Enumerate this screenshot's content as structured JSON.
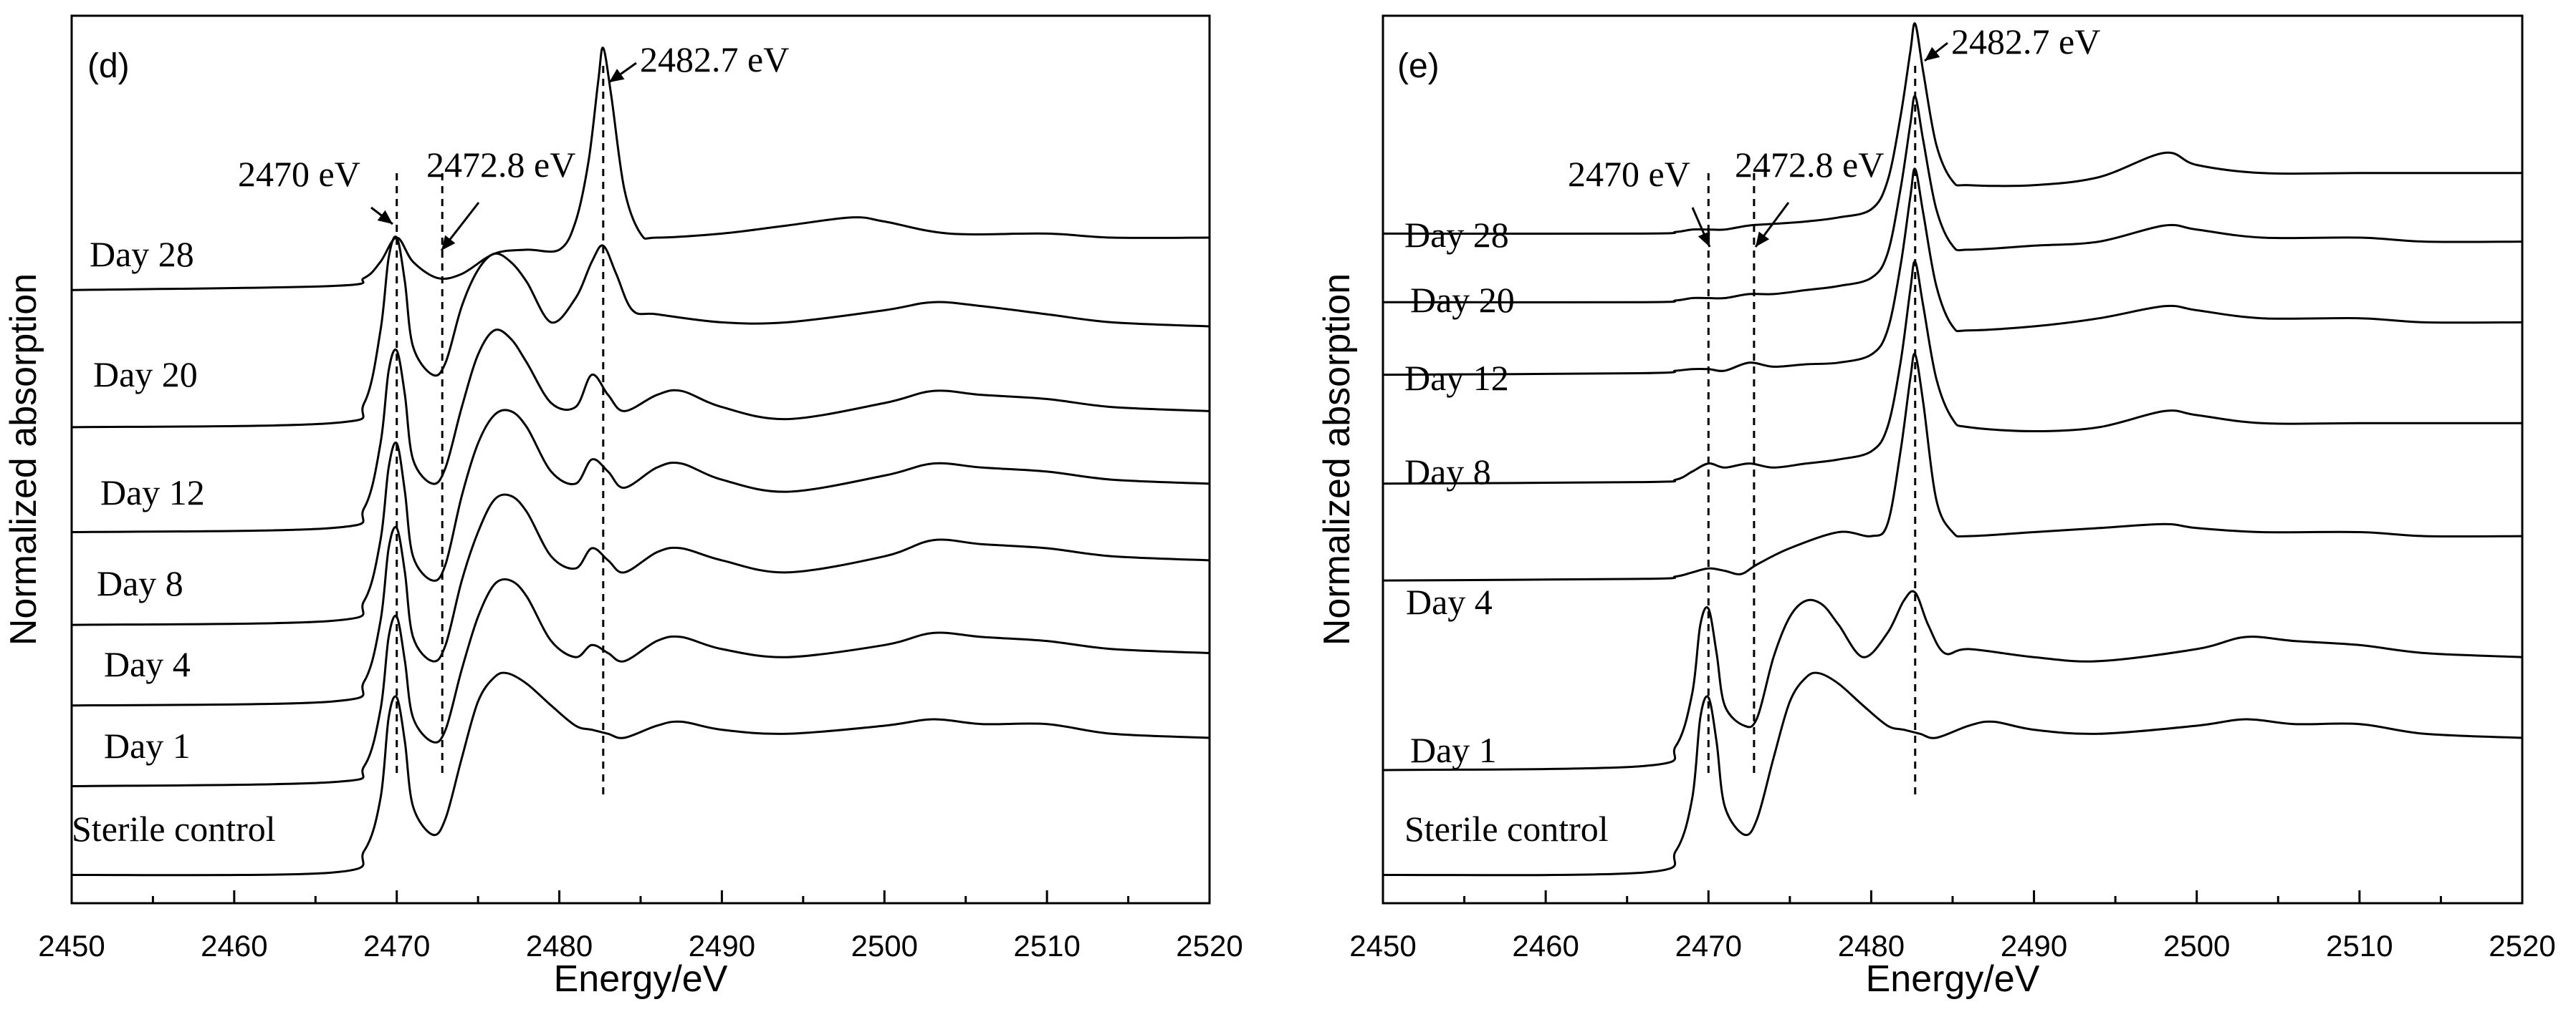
{
  "chart_data": [
    {
      "type": "line",
      "panel_label": "(d)",
      "xlabel": "Energy/eV",
      "ylabel": "Normalized absorption",
      "xlim": [
        2450,
        2520
      ],
      "ylim": [
        0,
        11
      ],
      "x_ticks": [
        "2450",
        "2460",
        "2470",
        "2480",
        "2490",
        "2500",
        "2510",
        "2520"
      ],
      "y_ticks_shown": false,
      "grid": false,
      "legend": "none (series labelled inline at left)",
      "reference_lines": [
        {
          "x": 2470,
          "label": "2470 eV"
        },
        {
          "x": 2472.8,
          "label": "2472.8 eV"
        },
        {
          "x": 2482.7,
          "label": "2482.7 eV"
        }
      ],
      "series": [
        {
          "name": "Sterile control",
          "x": [
            2450,
            2466,
            2468,
            2469,
            2469.5,
            2470,
            2470.5,
            2471,
            2472.2,
            2473,
            2474,
            2475,
            2476,
            2476.8,
            2478,
            2479.5,
            2481,
            2482,
            2483,
            2484,
            2486,
            2487.5,
            2490,
            2494,
            2500,
            2503,
            2506,
            2510,
            2514,
            2520
          ],
          "y": [
            0.35,
            0.38,
            0.65,
            1.3,
            2.3,
            2.55,
            2.0,
            1.2,
            0.85,
            1.05,
            1.8,
            2.5,
            2.8,
            2.85,
            2.72,
            2.45,
            2.2,
            2.15,
            2.1,
            2.05,
            2.2,
            2.25,
            2.15,
            2.1,
            2.2,
            2.28,
            2.22,
            2.22,
            2.1,
            2.05
          ]
        },
        {
          "name": "Day 1",
          "x": [
            2450,
            2466,
            2468,
            2469,
            2469.5,
            2470,
            2470.5,
            2471,
            2472.2,
            2473,
            2474,
            2475,
            2476,
            2477,
            2478,
            2479.5,
            2481,
            2482,
            2483,
            2484,
            2486,
            2487.5,
            2490,
            2494,
            2500,
            2503,
            2506,
            2510,
            2514,
            2520
          ],
          "y": [
            1.45,
            1.5,
            1.7,
            2.4,
            3.3,
            3.55,
            3.0,
            2.3,
            2.0,
            2.15,
            2.9,
            3.55,
            3.95,
            4.0,
            3.8,
            3.25,
            3.05,
            3.2,
            3.1,
            3.0,
            3.25,
            3.3,
            3.15,
            3.05,
            3.2,
            3.35,
            3.3,
            3.25,
            3.15,
            3.1
          ]
        },
        {
          "name": "Day 4",
          "x": [
            2450,
            2466,
            2468,
            2469,
            2469.5,
            2470,
            2470.5,
            2471,
            2472.2,
            2473,
            2474,
            2475,
            2476,
            2477,
            2478,
            2479.5,
            2481,
            2482,
            2483,
            2484,
            2486,
            2487.5,
            2490,
            2494,
            2500,
            2503,
            2506,
            2510,
            2514,
            2520
          ],
          "y": [
            2.45,
            2.5,
            2.75,
            3.5,
            4.4,
            4.65,
            4.1,
            3.3,
            3.0,
            3.2,
            4.0,
            4.6,
            5.0,
            5.05,
            4.85,
            4.3,
            4.15,
            4.4,
            4.25,
            4.1,
            4.35,
            4.4,
            4.25,
            4.1,
            4.3,
            4.5,
            4.45,
            4.4,
            4.3,
            4.25
          ]
        },
        {
          "name": "Day 8",
          "x": [
            2450,
            2466,
            2468,
            2469,
            2469.5,
            2470,
            2470.5,
            2471,
            2472.2,
            2473,
            2474,
            2475,
            2476,
            2477,
            2478,
            2479.5,
            2481,
            2482,
            2483,
            2484,
            2486,
            2487.5,
            2490,
            2494,
            2500,
            2503,
            2506,
            2510,
            2514,
            2520
          ],
          "y": [
            3.45,
            3.5,
            3.75,
            4.5,
            5.4,
            5.7,
            5.1,
            4.3,
            4.0,
            4.2,
            5.05,
            5.7,
            6.05,
            6.1,
            5.9,
            5.35,
            5.2,
            5.5,
            5.35,
            5.15,
            5.4,
            5.45,
            5.25,
            5.1,
            5.3,
            5.45,
            5.4,
            5.35,
            5.25,
            5.2
          ]
        },
        {
          "name": "Day 12",
          "x": [
            2450,
            2466,
            2468,
            2469,
            2469.5,
            2470,
            2470.5,
            2471,
            2472.2,
            2473,
            2474,
            2475,
            2476,
            2477,
            2478,
            2479.5,
            2481,
            2482,
            2483,
            2484,
            2486,
            2487.5,
            2490,
            2494,
            2500,
            2503,
            2506,
            2510,
            2514,
            2520
          ],
          "y": [
            4.6,
            4.65,
            4.9,
            5.7,
            6.6,
            6.85,
            6.3,
            5.5,
            5.2,
            5.4,
            6.15,
            6.8,
            7.1,
            7.0,
            6.7,
            6.2,
            6.15,
            6.55,
            6.3,
            6.1,
            6.3,
            6.35,
            6.15,
            6.0,
            6.2,
            6.35,
            6.3,
            6.25,
            6.15,
            6.1
          ]
        },
        {
          "name": "Day 20",
          "x": [
            2450,
            2466,
            2468,
            2469,
            2469.5,
            2470,
            2470.5,
            2471,
            2472.2,
            2473,
            2474,
            2475,
            2476,
            2477,
            2478,
            2479.5,
            2481,
            2482,
            2482.7,
            2483.5,
            2484.5,
            2486,
            2490,
            2494,
            2500,
            2503,
            2506,
            2510,
            2514,
            2520
          ],
          "y": [
            5.9,
            5.95,
            6.2,
            7.1,
            8.0,
            8.25,
            7.7,
            6.9,
            6.55,
            6.7,
            7.4,
            7.85,
            8.05,
            7.95,
            7.7,
            7.2,
            7.5,
            7.95,
            8.15,
            7.8,
            7.35,
            7.3,
            7.2,
            7.2,
            7.35,
            7.45,
            7.4,
            7.3,
            7.2,
            7.15
          ]
        },
        {
          "name": "Day 28",
          "x": [
            2450,
            2466,
            2468,
            2469,
            2470,
            2471,
            2472.5,
            2474,
            2476,
            2478,
            2480,
            2481,
            2481.8,
            2482.4,
            2482.7,
            2483.2,
            2484,
            2485,
            2486,
            2490,
            2494,
            2498,
            2500,
            2504,
            2510,
            2514,
            2520
          ],
          "y": [
            7.6,
            7.65,
            7.75,
            7.95,
            8.25,
            7.95,
            7.75,
            7.8,
            8.05,
            8.1,
            8.1,
            8.45,
            9.2,
            10.2,
            10.6,
            10.0,
            8.85,
            8.3,
            8.25,
            8.3,
            8.4,
            8.5,
            8.45,
            8.3,
            8.3,
            8.25,
            8.25
          ]
        }
      ]
    },
    {
      "type": "line",
      "panel_label": "(e)",
      "xlabel": "Energy/eV",
      "ylabel": "Normalized absorption",
      "xlim": [
        2450,
        2520
      ],
      "ylim": [
        0,
        11
      ],
      "x_ticks": [
        "2450",
        "2460",
        "2470",
        "2480",
        "2490",
        "2500",
        "2510",
        "2520"
      ],
      "y_ticks_shown": false,
      "grid": false,
      "legend": "none (series labelled inline at left)",
      "reference_lines": [
        {
          "x": 2470,
          "label": "2470 eV"
        },
        {
          "x": 2472.8,
          "label": "2472.8 eV"
        },
        {
          "x": 2482.7,
          "label": "2482.7 eV"
        }
      ],
      "series": [
        {
          "name": "Sterile control",
          "x": [
            2450,
            2466,
            2468,
            2469,
            2469.5,
            2470,
            2470.5,
            2471,
            2472.2,
            2473,
            2474,
            2475,
            2476,
            2476.8,
            2478,
            2479.5,
            2481,
            2482,
            2483,
            2484,
            2486,
            2487.5,
            2490,
            2494,
            2500,
            2503,
            2506,
            2510,
            2514,
            2520
          ],
          "y": [
            0.35,
            0.38,
            0.65,
            1.3,
            2.3,
            2.55,
            2.0,
            1.2,
            0.85,
            1.05,
            1.8,
            2.5,
            2.8,
            2.85,
            2.72,
            2.45,
            2.2,
            2.15,
            2.1,
            2.05,
            2.2,
            2.25,
            2.15,
            2.1,
            2.2,
            2.28,
            2.22,
            2.22,
            2.1,
            2.05
          ]
        },
        {
          "name": "Day 1",
          "x": [
            2450,
            2466,
            2468,
            2469,
            2469.5,
            2470,
            2470.5,
            2471,
            2472.2,
            2473,
            2474,
            2475,
            2476,
            2477,
            2478,
            2479.5,
            2481,
            2482,
            2482.7,
            2483.5,
            2484.5,
            2486,
            2490,
            2494,
            2500,
            2503,
            2506,
            2510,
            2514,
            2520
          ],
          "y": [
            1.65,
            1.7,
            1.95,
            2.6,
            3.45,
            3.65,
            3.1,
            2.45,
            2.2,
            2.3,
            3.05,
            3.55,
            3.75,
            3.7,
            3.45,
            3.05,
            3.35,
            3.75,
            3.85,
            3.45,
            3.1,
            3.15,
            3.05,
            3.0,
            3.15,
            3.3,
            3.25,
            3.2,
            3.1,
            3.05
          ]
        },
        {
          "name": "Day 4",
          "x": [
            2450,
            2466,
            2468,
            2469,
            2470,
            2471,
            2472,
            2473,
            2475,
            2478,
            2480,
            2481,
            2481.8,
            2482.4,
            2482.7,
            2483.2,
            2484,
            2485,
            2486,
            2490,
            2494,
            2498,
            2500,
            2504,
            2510,
            2514,
            2520
          ],
          "y": [
            4.0,
            4.02,
            4.05,
            4.1,
            4.15,
            4.12,
            4.08,
            4.2,
            4.4,
            4.6,
            4.55,
            4.7,
            5.6,
            6.5,
            6.8,
            6.2,
            5.0,
            4.6,
            4.55,
            4.6,
            4.65,
            4.7,
            4.65,
            4.6,
            4.6,
            4.55,
            4.55
          ]
        },
        {
          "name": "Day 8",
          "x": [
            2450,
            2466,
            2468,
            2469,
            2470,
            2471,
            2472.5,
            2474,
            2476,
            2478,
            2480,
            2481,
            2481.8,
            2482.4,
            2482.7,
            2483.2,
            2484,
            2485,
            2486,
            2490,
            2494,
            2498,
            2500,
            2504,
            2510,
            2514,
            2520
          ],
          "y": [
            5.2,
            5.22,
            5.25,
            5.35,
            5.45,
            5.4,
            5.45,
            5.4,
            5.45,
            5.5,
            5.6,
            5.9,
            6.7,
            7.6,
            7.95,
            7.4,
            6.5,
            6.0,
            5.9,
            5.85,
            5.9,
            6.1,
            6.05,
            5.95,
            5.95,
            5.95,
            5.95
          ]
        },
        {
          "name": "Day 12",
          "x": [
            2450,
            2466,
            2468,
            2469,
            2470,
            2471,
            2472.5,
            2474,
            2476,
            2478,
            2480,
            2481,
            2481.8,
            2482.4,
            2482.7,
            2483.2,
            2484,
            2485,
            2486,
            2490,
            2494,
            2498,
            2500,
            2504,
            2510,
            2514,
            2520
          ],
          "y": [
            6.55,
            6.57,
            6.6,
            6.62,
            6.62,
            6.6,
            6.7,
            6.65,
            6.68,
            6.7,
            6.8,
            7.1,
            7.9,
            8.75,
            9.1,
            8.55,
            7.65,
            7.15,
            7.1,
            7.15,
            7.25,
            7.4,
            7.35,
            7.25,
            7.25,
            7.2,
            7.2
          ]
        },
        {
          "name": "Day 20",
          "x": [
            2450,
            2466,
            2468,
            2469,
            2470,
            2471,
            2472.5,
            2474,
            2476,
            2478,
            2480,
            2481,
            2481.8,
            2482.4,
            2482.7,
            2483.2,
            2484,
            2485,
            2486,
            2490,
            2494,
            2498,
            2500,
            2504,
            2510,
            2514,
            2520
          ],
          "y": [
            7.45,
            7.45,
            7.47,
            7.5,
            7.5,
            7.5,
            7.55,
            7.55,
            7.6,
            7.65,
            7.75,
            8.05,
            8.85,
            9.65,
            10.0,
            9.45,
            8.6,
            8.15,
            8.1,
            8.15,
            8.2,
            8.4,
            8.35,
            8.25,
            8.25,
            8.2,
            8.2
          ]
        },
        {
          "name": "Day 28",
          "x": [
            2450,
            2466,
            2468,
            2469,
            2470,
            2471,
            2472.5,
            2474,
            2476,
            2478,
            2480,
            2481,
            2481.8,
            2482.4,
            2482.7,
            2483.2,
            2484,
            2485,
            2486,
            2490,
            2494,
            2498,
            2500,
            2504,
            2510,
            2514,
            2520
          ],
          "y": [
            8.3,
            8.3,
            8.32,
            8.35,
            8.35,
            8.35,
            8.4,
            8.42,
            8.45,
            8.5,
            8.6,
            8.95,
            9.75,
            10.55,
            10.9,
            10.3,
            9.4,
            8.95,
            8.9,
            8.9,
            9.0,
            9.3,
            9.15,
            9.05,
            9.05,
            9.05,
            9.05
          ]
        }
      ]
    }
  ]
}
